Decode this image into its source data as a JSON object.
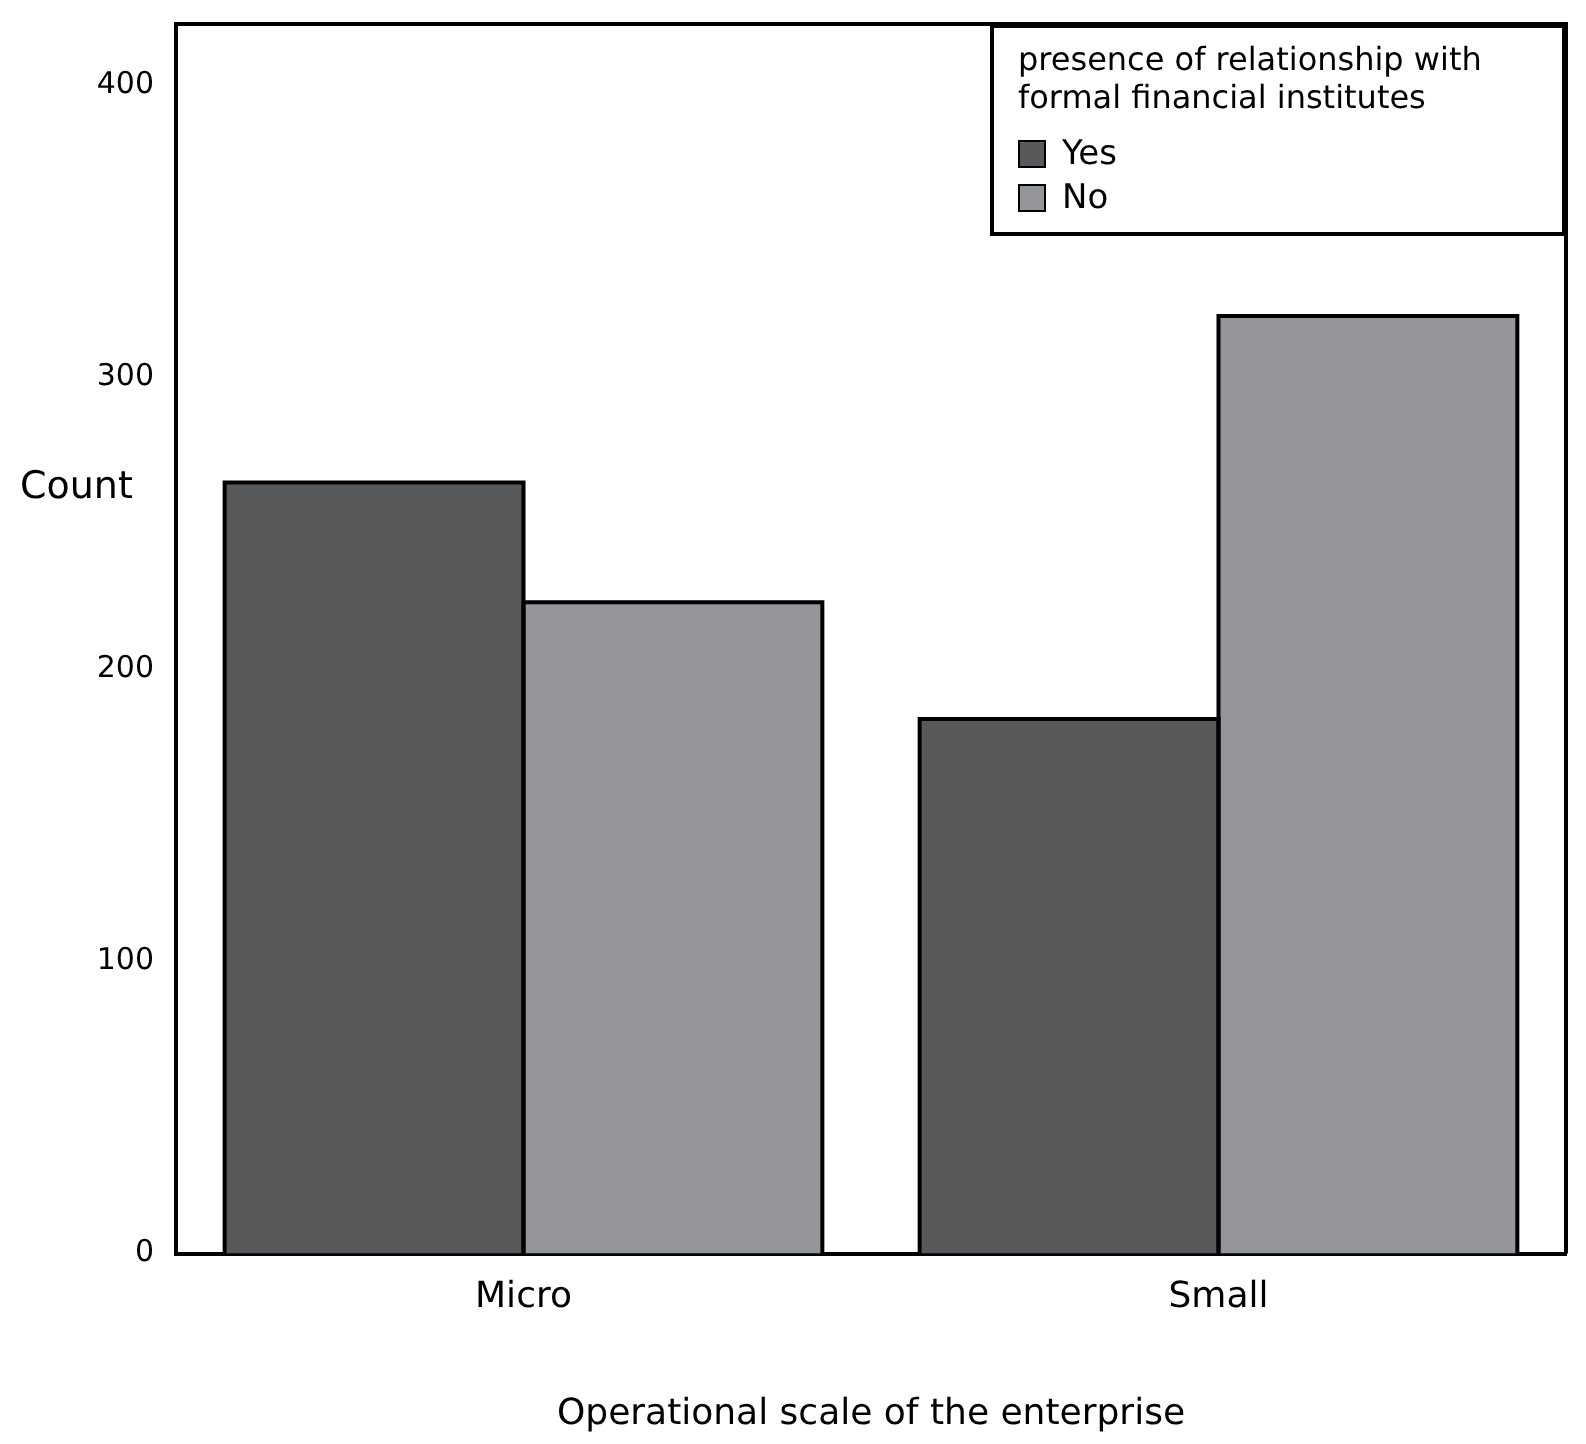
{
  "chart_data": {
    "type": "bar",
    "xlabel": "Operational scale of the enterprise",
    "ylabel": "Count",
    "legend_title": "presence of relationship with formal financial institutes",
    "categories": [
      "Micro",
      "Small"
    ],
    "series": [
      {
        "name": "Yes",
        "color": "#58595b",
        "values": [
          264,
          183
        ]
      },
      {
        "name": "No",
        "color": "#939598",
        "values": [
          223,
          321
        ]
      }
    ],
    "ylim": [
      0,
      421
    ],
    "yticks": [
      0,
      100,
      200,
      300,
      400
    ],
    "grid": false,
    "legend": "top right"
  }
}
